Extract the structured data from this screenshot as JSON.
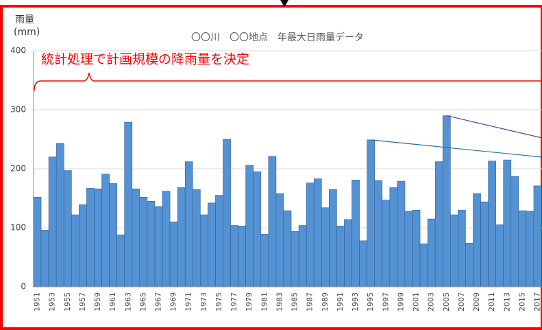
{
  "chart_data": {
    "type": "bar",
    "title": "〇〇川　〇〇地点　年最大日雨量データ",
    "y_label": "雨量",
    "y_unit": "(mm)",
    "annotation": "統計処理で計画規模の降雨量を決定",
    "color": "#5592d4",
    "categories": [
      "1951",
      null,
      "1953",
      null,
      "1955",
      null,
      "1957",
      null,
      "1959",
      null,
      "1961",
      null,
      "1963",
      null,
      "1965",
      null,
      "1967",
      null,
      "1969",
      null,
      "1971",
      null,
      "1973",
      null,
      "1975",
      null,
      "1977",
      null,
      "1979",
      null,
      "1981",
      null,
      "1983",
      null,
      "1985",
      null,
      "1987",
      null,
      "1989",
      null,
      "1991",
      null,
      "1993",
      null,
      "1995",
      null,
      "1997",
      null,
      "1999",
      null,
      "2001",
      null,
      "2003",
      null,
      "2005",
      null,
      "2007",
      null,
      "2009",
      null,
      "2011",
      null,
      "2013",
      null,
      "2015",
      null,
      "2017"
    ],
    "values": [
      152,
      96,
      220,
      243,
      197,
      122,
      139,
      167,
      166,
      191,
      175,
      88,
      279,
      166,
      152,
      145,
      136,
      162,
      110,
      168,
      212,
      165,
      122,
      142,
      155,
      250,
      104,
      103,
      206,
      195,
      89,
      221,
      158,
      129,
      94,
      104,
      176,
      183,
      134,
      165,
      103,
      114,
      181,
      78,
      249,
      180,
      147,
      168,
      179,
      128,
      130,
      73,
      115,
      212,
      290,
      122,
      130,
      74,
      158,
      144,
      213,
      105,
      215,
      187,
      129,
      128,
      171
    ],
    "ylim": [
      0,
      400
    ],
    "yticks": [
      0,
      100,
      200,
      300,
      400
    ],
    "grid": true
  }
}
